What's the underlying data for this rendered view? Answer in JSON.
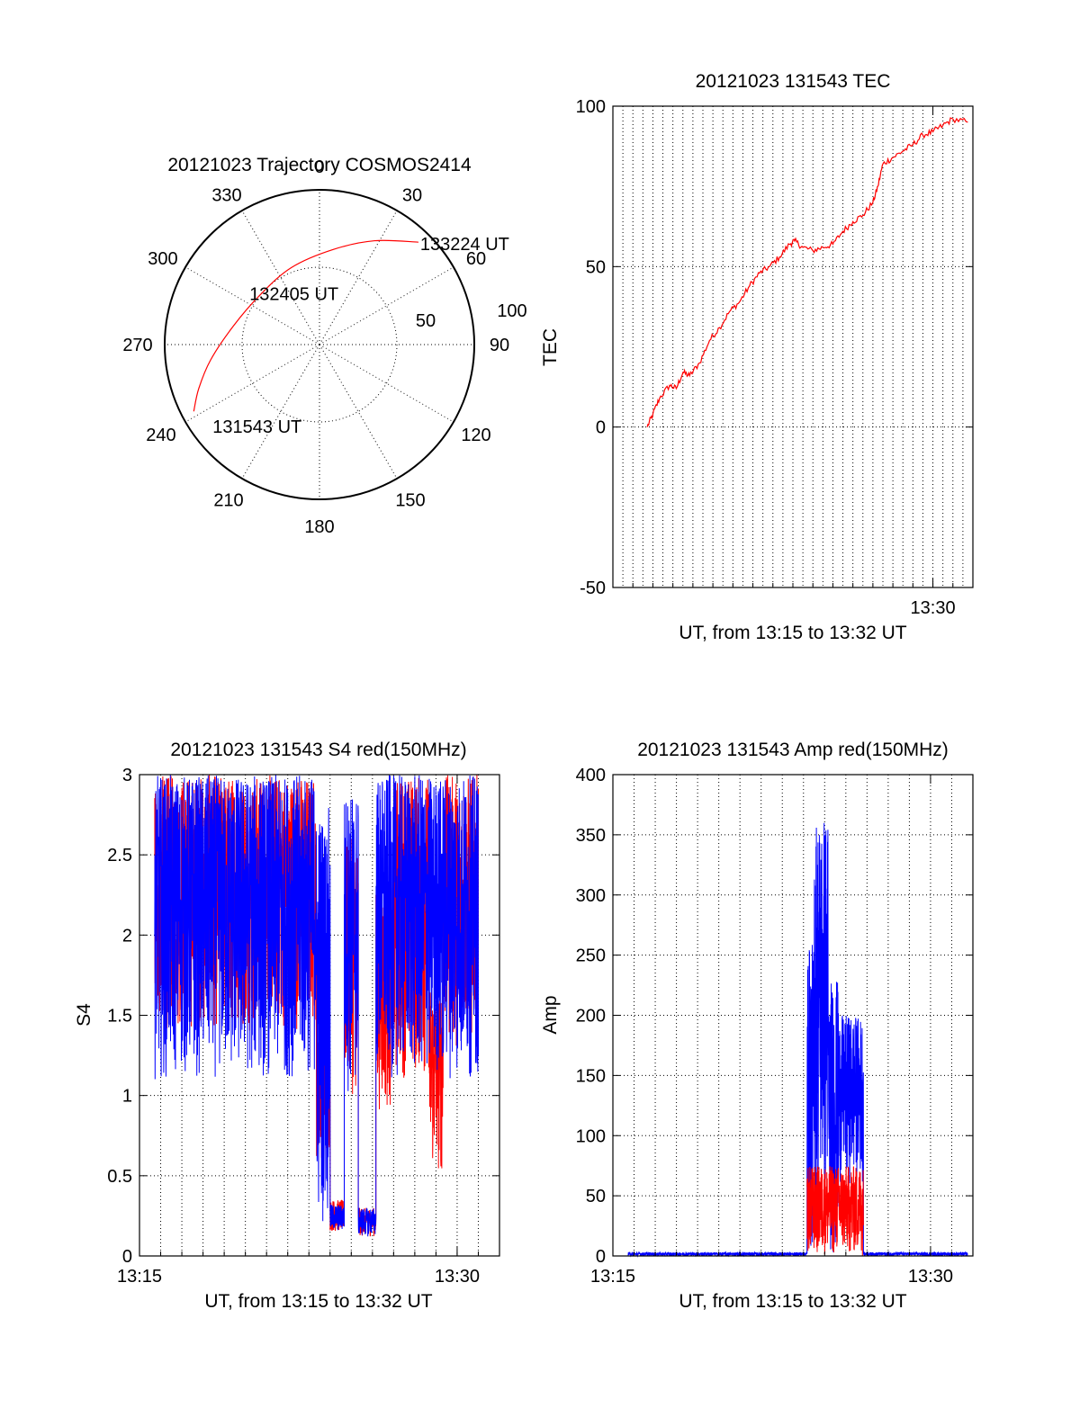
{
  "colors": {
    "red": "#ff0000",
    "blue": "#0000ff",
    "axis": "#000000"
  },
  "chart_data": [
    {
      "id": "trajectory",
      "type": "polar",
      "title": "20121023 Trajectory COSMOS2414",
      "angle_labels": [
        {
          "angle": 0,
          "label": "0"
        },
        {
          "angle": 30,
          "label": "30"
        },
        {
          "angle": 60,
          "label": "60"
        },
        {
          "angle": 90,
          "label": "90"
        },
        {
          "angle": 120,
          "label": "120"
        },
        {
          "angle": 150,
          "label": "150"
        },
        {
          "angle": 180,
          "label": "180"
        },
        {
          "angle": 210,
          "label": "210"
        },
        {
          "angle": 240,
          "label": "240"
        },
        {
          "angle": 270,
          "label": "270"
        },
        {
          "angle": 300,
          "label": "300"
        },
        {
          "angle": 330,
          "label": "330"
        }
      ],
      "radius_labels": [
        {
          "r": 50,
          "label": "50"
        },
        {
          "r": 100,
          "label": "100"
        }
      ],
      "rmax": 100,
      "trajectory": {
        "color": "red",
        "points": [
          {
            "azimuth": 242,
            "r": 92
          },
          {
            "azimuth": 250,
            "r": 83
          },
          {
            "azimuth": 262,
            "r": 71
          },
          {
            "azimuth": 282,
            "r": 57
          },
          {
            "azimuth": 310,
            "r": 50
          },
          {
            "azimuth": 340,
            "r": 53
          },
          {
            "azimuth": 8,
            "r": 62
          },
          {
            "azimuth": 28,
            "r": 76
          },
          {
            "azimuth": 44,
            "r": 92
          }
        ]
      },
      "annotations": [
        {
          "text": "133224 UT",
          "azimuth": 44,
          "r": 92
        },
        {
          "text": "132405 UT",
          "azimuth": 330,
          "r": 30
        },
        {
          "text": "131543 UT",
          "azimuth": 235,
          "r": 80
        }
      ]
    },
    {
      "id": "tec",
      "type": "line",
      "title": "20121023 131543 TEC",
      "xlabel": "UT, from 13:15 to 13:32 UT",
      "ylabel": "TEC",
      "xlim": [
        "13:14",
        "13:32"
      ],
      "ylim": [
        -50,
        100
      ],
      "yticks": [
        -50,
        0,
        50,
        100
      ],
      "xticks": [
        {
          "t": "13:30",
          "label": "13:30"
        }
      ],
      "vertical_grid_every_min": 0.5,
      "horizontal_grid": [
        0,
        50
      ],
      "series": [
        {
          "color": "red",
          "points": [
            [
              "13:15:43",
              0
            ],
            [
              "13:16:00",
              4
            ],
            [
              "13:16:20",
              9
            ],
            [
              "13:16:50",
              13
            ],
            [
              "13:17:10",
              12
            ],
            [
              "13:17:30",
              17
            ],
            [
              "13:17:50",
              16
            ],
            [
              "13:18:20",
              20
            ],
            [
              "13:18:50",
              27
            ],
            [
              "13:19:20",
              31
            ],
            [
              "13:19:50",
              36
            ],
            [
              "13:20:20",
              39
            ],
            [
              "13:20:50",
              44
            ],
            [
              "13:21:20",
              48
            ],
            [
              "13:21:50",
              50
            ],
            [
              "13:22:20",
              53
            ],
            [
              "13:22:50",
              57
            ],
            [
              "13:23:05",
              58
            ],
            [
              "13:23:30",
              56
            ],
            [
              "13:24:00",
              55
            ],
            [
              "13:24:30",
              56
            ],
            [
              "13:25:00",
              57
            ],
            [
              "13:25:30",
              61
            ],
            [
              "13:26:00",
              64
            ],
            [
              "13:26:30",
              66
            ],
            [
              "13:27:00",
              70
            ],
            [
              "13:27:15",
              75
            ],
            [
              "13:27:30",
              82
            ],
            [
              "13:28:00",
              84
            ],
            [
              "13:28:30",
              86
            ],
            [
              "13:29:00",
              88
            ],
            [
              "13:29:30",
              91
            ],
            [
              "13:30:00",
              92
            ],
            [
              "13:30:30",
              94
            ],
            [
              "13:31:00",
              96
            ],
            [
              "13:31:45",
              95
            ]
          ]
        }
      ]
    },
    {
      "id": "s4",
      "type": "line",
      "title": "20121023 131543 S4 red(150MHz)",
      "xlabel": "UT, from 13:15 to 13:32 UT",
      "ylabel": "S4",
      "xlim": [
        "13:15",
        "13:32"
      ],
      "ylim": [
        0,
        3
      ],
      "yticks": [
        0,
        0.5,
        1,
        1.5,
        2,
        2.5,
        3
      ],
      "ytick_labels": [
        "0",
        "0.5",
        "1",
        "1.5",
        "2",
        "2.5",
        "3"
      ],
      "xticks": [
        {
          "t": "13:15",
          "label": "13:15"
        },
        {
          "t": "13:30",
          "label": "13:30"
        }
      ],
      "vertical_grid_every_min": 1,
      "horizontal_grid": [
        0.5,
        1,
        1.5,
        2,
        2.5
      ],
      "series": [
        {
          "color": "red",
          "segments": [
            {
              "from": "13:15:43",
              "to": "13:23:20",
              "min": 1.4,
              "max": 3.0
            },
            {
              "from": "13:23:20",
              "to": "13:24:00",
              "min": 0.6,
              "max": 1.7
            },
            {
              "from": "13:24:00",
              "to": "13:24:40",
              "min": 0.15,
              "max": 0.35
            },
            {
              "from": "13:24:40",
              "to": "13:25:20",
              "min": 1.0,
              "max": 2.6
            },
            {
              "from": "13:25:20",
              "to": "13:26:10",
              "min": 0.12,
              "max": 0.3
            },
            {
              "from": "13:26:10",
              "to": "13:27:00",
              "min": 0.9,
              "max": 2.3
            },
            {
              "from": "13:27:00",
              "to": "13:28:40",
              "min": 1.1,
              "max": 3.0
            },
            {
              "from": "13:28:40",
              "to": "13:29:20",
              "min": 0.5,
              "max": 1.7
            },
            {
              "from": "13:29:20",
              "to": "13:31:00",
              "min": 1.3,
              "max": 3.0
            }
          ]
        },
        {
          "color": "blue",
          "segments": [
            {
              "from": "13:15:43",
              "to": "13:23:20",
              "min": 1.1,
              "max": 3.0
            },
            {
              "from": "13:23:20",
              "to": "13:24:00",
              "min": 0.2,
              "max": 2.8
            },
            {
              "from": "13:24:00",
              "to": "13:24:40",
              "min": 0.15,
              "max": 0.32
            },
            {
              "from": "13:24:40",
              "to": "13:25:20",
              "min": 1.0,
              "max": 2.9
            },
            {
              "from": "13:25:20",
              "to": "13:26:10",
              "min": 0.12,
              "max": 0.3
            },
            {
              "from": "13:26:10",
              "to": "13:31:00",
              "min": 1.1,
              "max": 3.0
            }
          ]
        }
      ]
    },
    {
      "id": "amp",
      "type": "line",
      "title": "20121023 131543 Amp red(150MHz)",
      "xlabel": "UT, from 13:15 to 13:32 UT",
      "ylabel": "Amp",
      "xlim": [
        "13:15",
        "13:32"
      ],
      "ylim": [
        0,
        400
      ],
      "yticks": [
        0,
        50,
        100,
        150,
        200,
        250,
        300,
        350,
        400
      ],
      "xticks": [
        {
          "t": "13:15",
          "label": "13:15"
        },
        {
          "t": "13:30",
          "label": "13:30"
        }
      ],
      "vertical_grid_every_min": 1,
      "horizontal_grid": [
        50,
        100,
        150,
        200,
        250,
        300,
        350
      ],
      "series": [
        {
          "color": "blue",
          "segments": [
            {
              "from": "13:15:43",
              "to": "13:24:10",
              "min": 0,
              "max": 3
            },
            {
              "from": "13:24:10",
              "to": "13:24:30",
              "min": 0,
              "max": 260
            },
            {
              "from": "13:24:30",
              "to": "13:25:10",
              "min": 40,
              "max": 370
            },
            {
              "from": "13:25:10",
              "to": "13:25:40",
              "min": 0,
              "max": 230
            },
            {
              "from": "13:25:40",
              "to": "13:26:50",
              "min": 60,
              "max": 200
            },
            {
              "from": "13:26:50",
              "to": "13:31:45",
              "min": 0,
              "max": 3
            }
          ]
        },
        {
          "color": "red",
          "segments": [
            {
              "from": "13:24:10",
              "to": "13:26:50",
              "min": 0,
              "max": 75
            }
          ]
        }
      ]
    }
  ]
}
